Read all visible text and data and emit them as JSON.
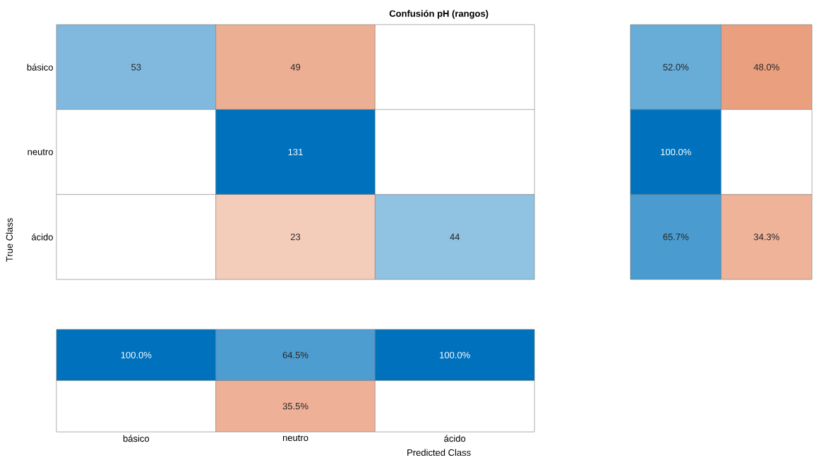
{
  "chart_data": [
    {
      "type": "heatmap",
      "title": "Confusión pH (rangos)",
      "ylabel": "True Class",
      "categories": [
        null,
        null,
        null
      ],
      "y_categories": [
        "básico",
        "neutro",
        "ácido"
      ],
      "cells": [
        [
          53,
          49,
          null
        ],
        [
          null,
          131,
          null
        ],
        [
          null,
          23,
          44
        ]
      ],
      "data_labels": true,
      "tick_labels": "y"
    },
    {
      "type": "heatmap",
      "categories": [
        null,
        null
      ],
      "y_categories": [
        null,
        null,
        null
      ],
      "cells": [
        [
          52.0,
          48.0
        ],
        [
          100.0,
          null
        ],
        [
          65.7,
          34.3
        ]
      ],
      "cell_labels": [
        [
          "52.0%",
          "48.0%"
        ],
        [
          "100.0%",
          null
        ],
        [
          "65.7%",
          "34.3%"
        ]
      ],
      "tick_labels": false
    },
    {
      "type": "heatmap",
      "xlabel": "Predicted Class",
      "categories": [
        "básico",
        "neutro",
        "ácido"
      ],
      "y_categories": [
        null,
        null
      ],
      "cells": [
        [
          100.0,
          64.5,
          100.0
        ],
        [
          null,
          35.5,
          null
        ]
      ],
      "cell_labels": [
        [
          "100.0%",
          "64.5%",
          "100.0%"
        ],
        [
          null,
          "35.5%",
          null
        ]
      ],
      "tick_labels": "x"
    }
  ]
}
